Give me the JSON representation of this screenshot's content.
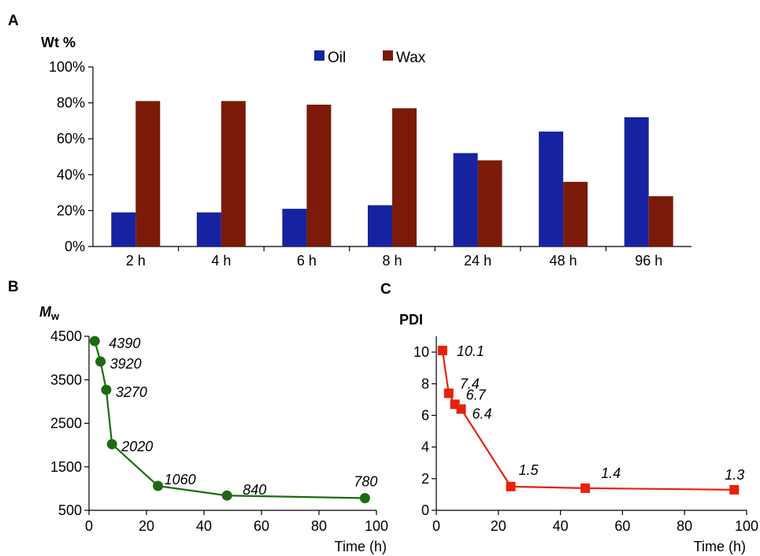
{
  "panels": {
    "a": {
      "letter": "A",
      "ylabel": "Wt %",
      "legend": [
        "Oil",
        "Wax"
      ],
      "yticks": [
        "0%",
        "20%",
        "40%",
        "60%",
        "80%",
        "100%"
      ]
    },
    "b": {
      "letter": "B",
      "ylabel_main": "M",
      "ylabel_sub": "w",
      "xlabel": "Time (h)",
      "yticks": [
        "500",
        "1500",
        "2500",
        "3500",
        "4500"
      ],
      "xticks": [
        "0",
        "20",
        "40",
        "60",
        "80",
        "100"
      ]
    },
    "c": {
      "letter": "C",
      "ylabel": "PDI",
      "xlabel": "Time (h)",
      "yticks": [
        "0",
        "2",
        "4",
        "6",
        "8",
        "10"
      ],
      "xticks": [
        "0",
        "20",
        "40",
        "60",
        "80",
        "100"
      ]
    }
  },
  "chart_data": [
    {
      "type": "bar",
      "ylabel": "Wt %",
      "categories": [
        "2 h",
        "4 h",
        "6 h",
        "8 h",
        "24 h",
        "48 h",
        "96 h"
      ],
      "series": [
        {
          "name": "Oil",
          "color": "#1622a0",
          "values": [
            19,
            19,
            21,
            23,
            52,
            64,
            72
          ]
        },
        {
          "name": "Wax",
          "color": "#7b1a08",
          "values": [
            81,
            81,
            79,
            77,
            48,
            36,
            28
          ]
        }
      ],
      "ylim": [
        0,
        100
      ],
      "yunit": "%",
      "legend": "top-center",
      "grid": false
    },
    {
      "type": "line",
      "ylabel": "Mw",
      "xlabel": "Time (h)",
      "x": [
        2,
        4,
        6,
        8,
        24,
        48,
        96
      ],
      "series": [
        {
          "values": [
            4390,
            3920,
            3270,
            2020,
            1060,
            840,
            780
          ],
          "color": "#1e6a12",
          "marker": "circle",
          "labels": [
            "4390",
            "3920",
            "3270",
            "2020",
            "1060",
            "840",
            "780"
          ]
        }
      ],
      "xlim": [
        0,
        100
      ],
      "ylim": [
        500,
        4500
      ],
      "grid": false
    },
    {
      "type": "line",
      "ylabel": "PDI",
      "xlabel": "Time (h)",
      "x": [
        2,
        4,
        6,
        8,
        24,
        48,
        96
      ],
      "series": [
        {
          "values": [
            10.1,
            7.4,
            6.7,
            6.4,
            1.5,
            1.4,
            1.3
          ],
          "color": "#e8210a",
          "marker": "square",
          "labels": [
            "10.1",
            "7.4",
            "6.7",
            "6.4",
            "1.5",
            "1.4",
            "1.3"
          ]
        }
      ],
      "xlim": [
        0,
        100
      ],
      "ylim": [
        0,
        11
      ],
      "grid": false
    }
  ]
}
